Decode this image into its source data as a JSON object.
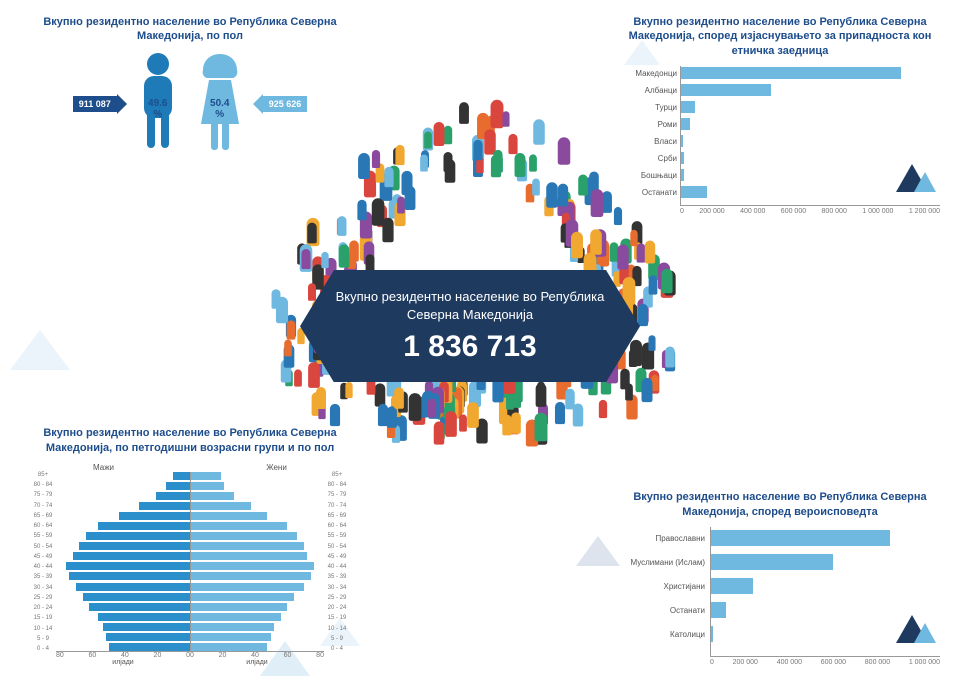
{
  "colors": {
    "title": "#1e4d8c",
    "male": "#1e7bb8",
    "female": "#6fb8e0",
    "banner_bg": "#1e3a5f",
    "bar_light": "#6fb8e0",
    "bar_dark": "#2b8fcc",
    "axis": "#999999",
    "crowd_palette": [
      "#d9463e",
      "#2a77b5",
      "#f0a830",
      "#2aa16b",
      "#e86c2e",
      "#333333",
      "#6fb8e0",
      "#8a4b9e"
    ]
  },
  "gender": {
    "title": "Вкупно резидентно население во Република Северна Македонија, по пол",
    "male_count": "911 087",
    "male_pct": "49.6 %",
    "female_count": "925 626",
    "female_pct": "50.4 %"
  },
  "hero": {
    "line1": "Вкупно резидентно население во Република Северна Македонија",
    "total": "1 836 713"
  },
  "ethnicity": {
    "title": "Вкупно резидентно население во Република Северна Македонија, според изјаснувањето за припадноста кон етничка заедница",
    "type": "horizontal_bar",
    "xlim": [
      0,
      1200000
    ],
    "xticks": [
      "0",
      "200 000",
      "400 000",
      "600 000",
      "800 000",
      "1 000 000",
      "1 200 000"
    ],
    "categories": [
      "Македонци",
      "Албанци",
      "Турци",
      "Роми",
      "Власи",
      "Срби",
      "Бошњаци",
      "Останати"
    ],
    "values": [
      1100000,
      450000,
      70000,
      45000,
      8000,
      15000,
      15000,
      130000
    ],
    "bar_color": "#6fb8e0"
  },
  "religion": {
    "title": "Вкупно резидентно население во Република Северна Македонија, според вероисповедта",
    "type": "horizontal_bar",
    "xlim": [
      0,
      1000000
    ],
    "xticks": [
      "0",
      "200 000",
      "400 000",
      "600 000",
      "800 000",
      "1 000 000"
    ],
    "categories": [
      "Православни",
      "Муслимани (Ислам)",
      "Христијани",
      "Останати",
      "Католици"
    ],
    "values": [
      850000,
      580000,
      200000,
      70000,
      8000
    ],
    "bar_color": "#6fb8e0"
  },
  "pyramid": {
    "title": "Вкупно резидентно население во Република Северна Македонија, по петгодишни возрасни групи и по пол",
    "left_header": "Мажи",
    "right_header": "Жени",
    "x_unit": "илјади",
    "x_max": 80,
    "xticks": [
      80,
      60,
      40,
      20,
      0
    ],
    "ages": [
      "85+",
      "80 - 84",
      "75 - 79",
      "70 - 74",
      "65 - 69",
      "60 - 64",
      "55 - 59",
      "50 - 54",
      "45 - 49",
      "40 - 44",
      "35 - 39",
      "30 - 34",
      "25 - 29",
      "20 - 24",
      "15 - 19",
      "10 - 14",
      "5 - 9",
      "0 - 4"
    ],
    "male": [
      10,
      14,
      20,
      30,
      42,
      55,
      62,
      66,
      70,
      74,
      72,
      68,
      64,
      60,
      55,
      52,
      50,
      48
    ],
    "female": [
      18,
      20,
      26,
      36,
      46,
      58,
      64,
      68,
      70,
      74,
      72,
      68,
      62,
      58,
      54,
      50,
      48,
      46
    ],
    "male_color": "#2b8fcc",
    "female_color": "#6fb8e0"
  }
}
